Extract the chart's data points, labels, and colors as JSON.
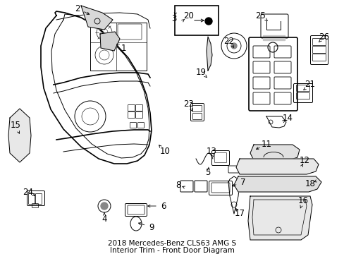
{
  "bg_color": "#ffffff",
  "line_color": "#000000",
  "label_fontsize": 8.5,
  "title_fontsize": 7.5,
  "figw": 4.89,
  "figh": 3.6,
  "dpi": 100
}
